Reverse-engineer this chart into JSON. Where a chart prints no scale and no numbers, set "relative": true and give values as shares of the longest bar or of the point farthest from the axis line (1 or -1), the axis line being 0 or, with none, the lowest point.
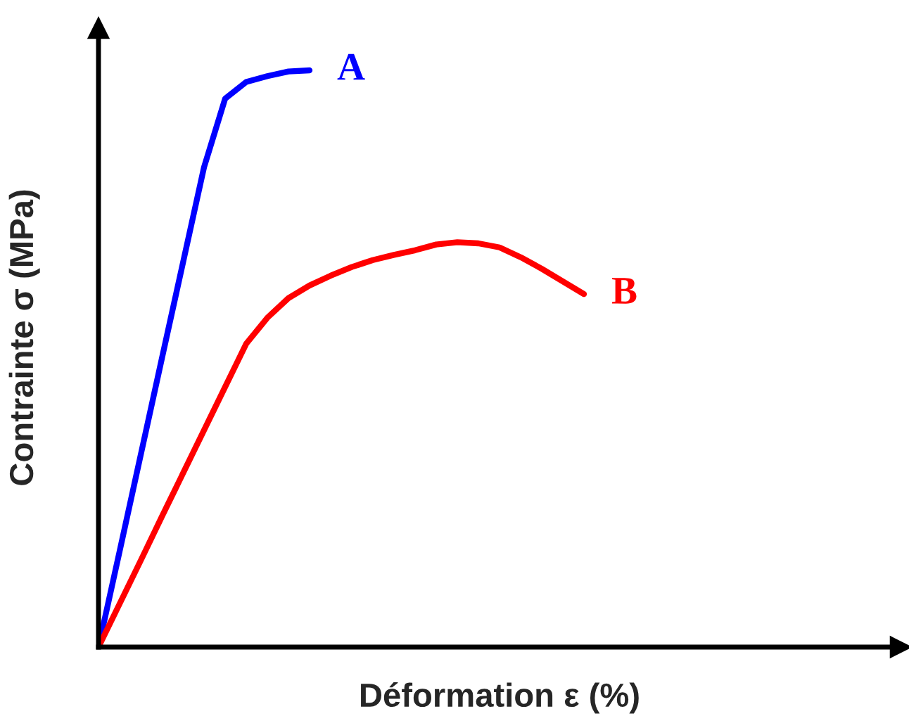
{
  "chart_data": {
    "type": "line",
    "relative": true,
    "xlabel": "Déformation ε (%)",
    "ylabel": "Contrainte σ (MPa)",
    "legend": false,
    "marker": "none",
    "line_style": "solid",
    "tick_labels": false,
    "categories": [
      null,
      null,
      null,
      null,
      null,
      null,
      null,
      null,
      null,
      null,
      null,
      null,
      null,
      null,
      null,
      null,
      null,
      null,
      null,
      null,
      null,
      null,
      null,
      null,
      null,
      null,
      null,
      null,
      null,
      null,
      null,
      null,
      null,
      null,
      null,
      null,
      null,
      null,
      null
    ],
    "series": [
      {
        "name": "A",
        "color": "#0000ff",
        "values": [
          0,
          0.166,
          0.333,
          0.5,
          0.666,
          0.832,
          0.951,
          0.98,
          0.99,
          0.998,
          1,
          null,
          null,
          null,
          null,
          null,
          null,
          null,
          null,
          null,
          null,
          null,
          null,
          null,
          null,
          null,
          null,
          null,
          null,
          null,
          null,
          null,
          null,
          null,
          null,
          null,
          null,
          null,
          null
        ]
      },
      {
        "name": "B",
        "color": "#ff0000",
        "values": [
          0,
          0.075,
          0.15,
          0.226,
          0.301,
          0.376,
          0.451,
          0.526,
          0.571,
          0.605,
          0.627,
          0.644,
          0.659,
          0.671,
          0.68,
          0.688,
          0.698,
          0.702,
          0.7,
          0.693,
          0.676,
          0.656,
          0.634,
          0.612,
          null,
          null,
          null,
          null,
          null,
          null,
          null,
          null,
          null,
          null,
          null,
          null,
          null,
          null,
          null
        ]
      }
    ]
  }
}
